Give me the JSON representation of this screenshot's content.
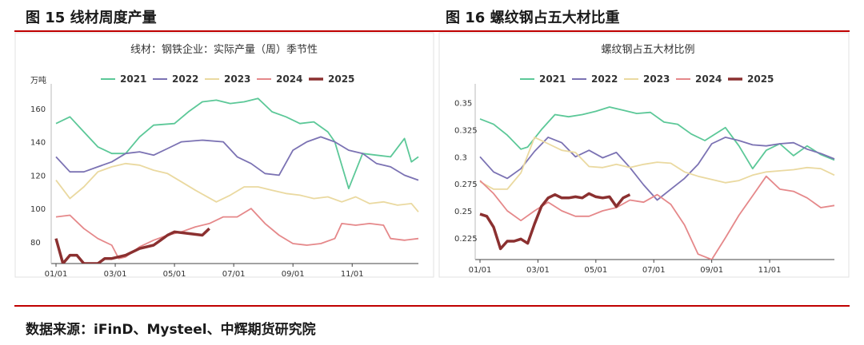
{
  "figures": {
    "left_label": "图 15 线材周度产量",
    "right_label": "图 16 螺纹钢占五大材比重"
  },
  "source": "数据来源：iFinD、Mysteel、中辉期货研究院",
  "palette": {
    "2021": "#5cc898",
    "2022": "#7b72b3",
    "2023": "#ead9a0",
    "2024": "#e5888a",
    "2025": "#8b3030",
    "rule": "#c00000"
  },
  "chart_data": [
    {
      "type": "line",
      "title": "线材：钢铁企业：实际产量（周）季节性",
      "unit": "万吨",
      "x_ticks": [
        "01/01",
        "03/01",
        "05/01",
        "07/01",
        "09/01",
        "11/01"
      ],
      "y_ticks": [
        "80",
        "100",
        "120",
        "140",
        "160"
      ],
      "ylim": [
        67,
        170
      ],
      "xlim": [
        1,
        53
      ],
      "grid": false,
      "legend_position": "top",
      "series": [
        {
          "name": "2021",
          "values": [
            [
              1,
              151
            ],
            [
              3,
              155
            ],
            [
              5,
              146
            ],
            [
              7,
              137
            ],
            [
              9,
              133
            ],
            [
              11,
              133
            ],
            [
              13,
              143
            ],
            [
              15,
              150
            ],
            [
              18,
              151
            ],
            [
              20,
              158
            ],
            [
              22,
              164
            ],
            [
              24,
              165
            ],
            [
              26,
              163
            ],
            [
              28,
              164
            ],
            [
              30,
              166
            ],
            [
              32,
              158
            ],
            [
              34,
              155
            ],
            [
              36,
              151
            ],
            [
              38,
              152
            ],
            [
              40,
              146
            ],
            [
              41,
              140
            ],
            [
              43,
              112
            ],
            [
              45,
              133
            ],
            [
              47,
              132
            ],
            [
              49,
              131
            ],
            [
              51,
              142
            ],
            [
              52,
              128
            ],
            [
              53,
              131
            ]
          ]
        },
        {
          "name": "2022",
          "values": [
            [
              1,
              131
            ],
            [
              3,
              122
            ],
            [
              5,
              122
            ],
            [
              7,
              125
            ],
            [
              9,
              128
            ],
            [
              11,
              133
            ],
            [
              13,
              134
            ],
            [
              15,
              132
            ],
            [
              17,
              136
            ],
            [
              19,
              140
            ],
            [
              22,
              141
            ],
            [
              25,
              140
            ],
            [
              27,
              131
            ],
            [
              29,
              127
            ],
            [
              31,
              121
            ],
            [
              33,
              120
            ],
            [
              35,
              135
            ],
            [
              37,
              140
            ],
            [
              39,
              143
            ],
            [
              41,
              140
            ],
            [
              43,
              135
            ],
            [
              45,
              133
            ],
            [
              47,
              127
            ],
            [
              49,
              125
            ],
            [
              51,
              120
            ],
            [
              53,
              117
            ]
          ]
        },
        {
          "name": "2023",
          "values": [
            [
              1,
              117
            ],
            [
              3,
              106
            ],
            [
              5,
              113
            ],
            [
              7,
              122
            ],
            [
              9,
              125
            ],
            [
              11,
              127
            ],
            [
              13,
              126
            ],
            [
              15,
              123
            ],
            [
              17,
              121
            ],
            [
              19,
              116
            ],
            [
              21,
              111
            ],
            [
              24,
              104
            ],
            [
              26,
              108
            ],
            [
              28,
              113
            ],
            [
              30,
              113
            ],
            [
              32,
              111
            ],
            [
              34,
              109
            ],
            [
              36,
              108
            ],
            [
              38,
              106
            ],
            [
              40,
              107
            ],
            [
              42,
              104
            ],
            [
              44,
              107
            ],
            [
              46,
              103
            ],
            [
              48,
              104
            ],
            [
              50,
              102
            ],
            [
              52,
              103
            ],
            [
              53,
              98
            ]
          ]
        },
        {
          "name": "2024",
          "values": [
            [
              1,
              95
            ],
            [
              3,
              96
            ],
            [
              5,
              88
            ],
            [
              7,
              82
            ],
            [
              9,
              78
            ],
            [
              10,
              70
            ],
            [
              11,
              71
            ],
            [
              13,
              77
            ],
            [
              15,
              81
            ],
            [
              17,
              84
            ],
            [
              19,
              86
            ],
            [
              21,
              89
            ],
            [
              23,
              91
            ],
            [
              25,
              95
            ],
            [
              27,
              95
            ],
            [
              29,
              100
            ],
            [
              31,
              91
            ],
            [
              33,
              84
            ],
            [
              35,
              79
            ],
            [
              37,
              78
            ],
            [
              39,
              79
            ],
            [
              41,
              82
            ],
            [
              42,
              91
            ],
            [
              44,
              90
            ],
            [
              46,
              91
            ],
            [
              48,
              90
            ],
            [
              49,
              82
            ],
            [
              51,
              81
            ],
            [
              53,
              82
            ]
          ]
        },
        {
          "name": "2025",
          "values": [
            [
              1,
              82
            ],
            [
              2,
              67
            ],
            [
              3,
              72
            ],
            [
              4,
              72
            ],
            [
              5,
              67
            ],
            [
              6,
              67
            ],
            [
              7,
              67
            ],
            [
              8,
              70
            ],
            [
              9,
              70
            ],
            [
              11,
              72
            ],
            [
              13,
              76
            ],
            [
              15,
              78
            ],
            [
              16,
              81
            ],
            [
              17,
              84
            ],
            [
              18,
              86
            ],
            [
              20,
              85
            ],
            [
              22,
              84
            ],
            [
              23,
              88
            ]
          ]
        }
      ]
    },
    {
      "type": "line",
      "title": "螺纹钢占五大材比例",
      "x_ticks": [
        "01/01",
        "03/01",
        "05/01",
        "07/01",
        "09/01",
        "11/01"
      ],
      "y_ticks": [
        "0.225",
        "0.25",
        "0.275",
        "0.3",
        "0.325",
        "0.35"
      ],
      "ylim": [
        0.205,
        0.36
      ],
      "xlim": [
        1,
        53
      ],
      "grid": false,
      "legend_position": "top",
      "series": [
        {
          "name": "2021",
          "values": [
            [
              1,
              0.335
            ],
            [
              3,
              0.33
            ],
            [
              5,
              0.32
            ],
            [
              7,
              0.307
            ],
            [
              8,
              0.309
            ],
            [
              10,
              0.325
            ],
            [
              12,
              0.339
            ],
            [
              14,
              0.337
            ],
            [
              16,
              0.339
            ],
            [
              18,
              0.342
            ],
            [
              20,
              0.346
            ],
            [
              22,
              0.343
            ],
            [
              24,
              0.34
            ],
            [
              26,
              0.341
            ],
            [
              28,
              0.332
            ],
            [
              30,
              0.33
            ],
            [
              32,
              0.321
            ],
            [
              34,
              0.315
            ],
            [
              36,
              0.323
            ],
            [
              37,
              0.327
            ],
            [
              39,
              0.31
            ],
            [
              41,
              0.289
            ],
            [
              43,
              0.306
            ],
            [
              45,
              0.312
            ],
            [
              47,
              0.301
            ],
            [
              49,
              0.31
            ],
            [
              51,
              0.302
            ],
            [
              53,
              0.297
            ]
          ]
        },
        {
          "name": "2022",
          "values": [
            [
              1,
              0.3
            ],
            [
              3,
              0.286
            ],
            [
              5,
              0.28
            ],
            [
              7,
              0.289
            ],
            [
              9,
              0.305
            ],
            [
              11,
              0.318
            ],
            [
              13,
              0.313
            ],
            [
              15,
              0.3
            ],
            [
              17,
              0.306
            ],
            [
              19,
              0.299
            ],
            [
              21,
              0.304
            ],
            [
              23,
              0.29
            ],
            [
              25,
              0.274
            ],
            [
              27,
              0.26
            ],
            [
              29,
              0.27
            ],
            [
              31,
              0.28
            ],
            [
              33,
              0.293
            ],
            [
              35,
              0.312
            ],
            [
              37,
              0.318
            ],
            [
              39,
              0.315
            ],
            [
              41,
              0.311
            ],
            [
              43,
              0.31
            ],
            [
              45,
              0.312
            ],
            [
              47,
              0.313
            ],
            [
              49,
              0.307
            ],
            [
              51,
              0.303
            ],
            [
              53,
              0.298
            ]
          ]
        },
        {
          "name": "2023",
          "values": [
            [
              1,
              0.277
            ],
            [
              3,
              0.27
            ],
            [
              5,
              0.27
            ],
            [
              7,
              0.285
            ],
            [
              9,
              0.318
            ],
            [
              11,
              0.312
            ],
            [
              13,
              0.306
            ],
            [
              15,
              0.304
            ],
            [
              17,
              0.291
            ],
            [
              19,
              0.29
            ],
            [
              21,
              0.293
            ],
            [
              23,
              0.29
            ],
            [
              25,
              0.293
            ],
            [
              27,
              0.295
            ],
            [
              29,
              0.294
            ],
            [
              31,
              0.286
            ],
            [
              33,
              0.282
            ],
            [
              35,
              0.279
            ],
            [
              37,
              0.276
            ],
            [
              39,
              0.278
            ],
            [
              41,
              0.283
            ],
            [
              43,
              0.286
            ],
            [
              45,
              0.287
            ],
            [
              47,
              0.288
            ],
            [
              49,
              0.29
            ],
            [
              51,
              0.289
            ],
            [
              53,
              0.283
            ]
          ]
        },
        {
          "name": "2024",
          "values": [
            [
              1,
              0.278
            ],
            [
              3,
              0.266
            ],
            [
              5,
              0.25
            ],
            [
              7,
              0.241
            ],
            [
              9,
              0.25
            ],
            [
              11,
              0.258
            ],
            [
              13,
              0.25
            ],
            [
              15,
              0.245
            ],
            [
              17,
              0.245
            ],
            [
              19,
              0.25
            ],
            [
              21,
              0.253
            ],
            [
              23,
              0.26
            ],
            [
              25,
              0.258
            ],
            [
              27,
              0.265
            ],
            [
              29,
              0.256
            ],
            [
              31,
              0.237
            ],
            [
              33,
              0.21
            ],
            [
              35,
              0.205
            ],
            [
              37,
              0.225
            ],
            [
              39,
              0.246
            ],
            [
              41,
              0.264
            ],
            [
              43,
              0.282
            ],
            [
              45,
              0.27
            ],
            [
              47,
              0.268
            ],
            [
              49,
              0.262
            ],
            [
              51,
              0.253
            ],
            [
              53,
              0.255
            ]
          ]
        },
        {
          "name": "2025",
          "values": [
            [
              1,
              0.247
            ],
            [
              2,
              0.245
            ],
            [
              3,
              0.235
            ],
            [
              4,
              0.215
            ],
            [
              5,
              0.222
            ],
            [
              6,
              0.222
            ],
            [
              7,
              0.224
            ],
            [
              8,
              0.22
            ],
            [
              9,
              0.238
            ],
            [
              10,
              0.254
            ],
            [
              11,
              0.262
            ],
            [
              12,
              0.265
            ],
            [
              13,
              0.262
            ],
            [
              14,
              0.262
            ],
            [
              15,
              0.263
            ],
            [
              16,
              0.262
            ],
            [
              17,
              0.266
            ],
            [
              18,
              0.263
            ],
            [
              19,
              0.262
            ],
            [
              20,
              0.263
            ],
            [
              21,
              0.254
            ],
            [
              22,
              0.262
            ],
            [
              23,
              0.265
            ]
          ]
        }
      ]
    }
  ]
}
